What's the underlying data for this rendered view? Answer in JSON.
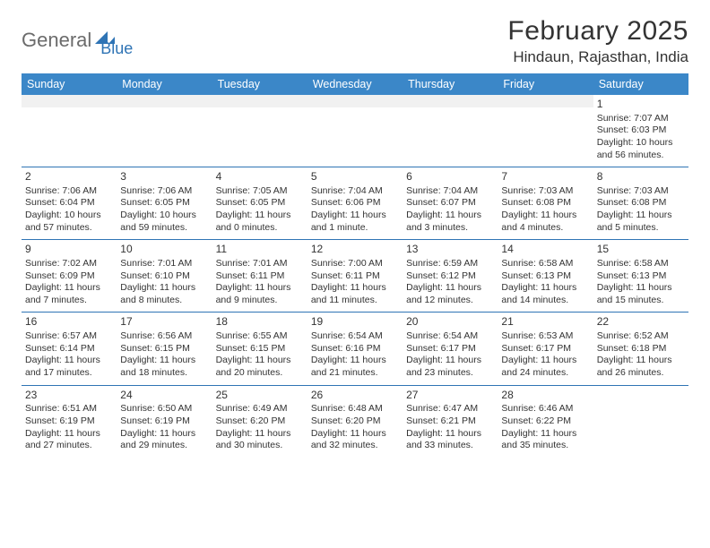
{
  "logo": {
    "text1": "General",
    "text2": "Blue"
  },
  "header": {
    "title": "February 2025",
    "location": "Hindaun, Rajasthan, India"
  },
  "colors": {
    "header_bg": "#3b87c8",
    "header_text": "#ffffff",
    "rule": "#2f74b5",
    "blank_bg": "#f1f1f1",
    "logo_gray": "#6b6b6b",
    "logo_blue": "#2f74b5",
    "body_text": "#333333"
  },
  "day_headers": [
    "Sunday",
    "Monday",
    "Tuesday",
    "Wednesday",
    "Thursday",
    "Friday",
    "Saturday"
  ],
  "weeks": [
    [
      null,
      null,
      null,
      null,
      null,
      null,
      {
        "day": "1",
        "sunrise": "Sunrise: 7:07 AM",
        "sunset": "Sunset: 6:03 PM",
        "daylight": "Daylight: 10 hours and 56 minutes."
      }
    ],
    [
      {
        "day": "2",
        "sunrise": "Sunrise: 7:06 AM",
        "sunset": "Sunset: 6:04 PM",
        "daylight": "Daylight: 10 hours and 57 minutes."
      },
      {
        "day": "3",
        "sunrise": "Sunrise: 7:06 AM",
        "sunset": "Sunset: 6:05 PM",
        "daylight": "Daylight: 10 hours and 59 minutes."
      },
      {
        "day": "4",
        "sunrise": "Sunrise: 7:05 AM",
        "sunset": "Sunset: 6:05 PM",
        "daylight": "Daylight: 11 hours and 0 minutes."
      },
      {
        "day": "5",
        "sunrise": "Sunrise: 7:04 AM",
        "sunset": "Sunset: 6:06 PM",
        "daylight": "Daylight: 11 hours and 1 minute."
      },
      {
        "day": "6",
        "sunrise": "Sunrise: 7:04 AM",
        "sunset": "Sunset: 6:07 PM",
        "daylight": "Daylight: 11 hours and 3 minutes."
      },
      {
        "day": "7",
        "sunrise": "Sunrise: 7:03 AM",
        "sunset": "Sunset: 6:08 PM",
        "daylight": "Daylight: 11 hours and 4 minutes."
      },
      {
        "day": "8",
        "sunrise": "Sunrise: 7:03 AM",
        "sunset": "Sunset: 6:08 PM",
        "daylight": "Daylight: 11 hours and 5 minutes."
      }
    ],
    [
      {
        "day": "9",
        "sunrise": "Sunrise: 7:02 AM",
        "sunset": "Sunset: 6:09 PM",
        "daylight": "Daylight: 11 hours and 7 minutes."
      },
      {
        "day": "10",
        "sunrise": "Sunrise: 7:01 AM",
        "sunset": "Sunset: 6:10 PM",
        "daylight": "Daylight: 11 hours and 8 minutes."
      },
      {
        "day": "11",
        "sunrise": "Sunrise: 7:01 AM",
        "sunset": "Sunset: 6:11 PM",
        "daylight": "Daylight: 11 hours and 9 minutes."
      },
      {
        "day": "12",
        "sunrise": "Sunrise: 7:00 AM",
        "sunset": "Sunset: 6:11 PM",
        "daylight": "Daylight: 11 hours and 11 minutes."
      },
      {
        "day": "13",
        "sunrise": "Sunrise: 6:59 AM",
        "sunset": "Sunset: 6:12 PM",
        "daylight": "Daylight: 11 hours and 12 minutes."
      },
      {
        "day": "14",
        "sunrise": "Sunrise: 6:58 AM",
        "sunset": "Sunset: 6:13 PM",
        "daylight": "Daylight: 11 hours and 14 minutes."
      },
      {
        "day": "15",
        "sunrise": "Sunrise: 6:58 AM",
        "sunset": "Sunset: 6:13 PM",
        "daylight": "Daylight: 11 hours and 15 minutes."
      }
    ],
    [
      {
        "day": "16",
        "sunrise": "Sunrise: 6:57 AM",
        "sunset": "Sunset: 6:14 PM",
        "daylight": "Daylight: 11 hours and 17 minutes."
      },
      {
        "day": "17",
        "sunrise": "Sunrise: 6:56 AM",
        "sunset": "Sunset: 6:15 PM",
        "daylight": "Daylight: 11 hours and 18 minutes."
      },
      {
        "day": "18",
        "sunrise": "Sunrise: 6:55 AM",
        "sunset": "Sunset: 6:15 PM",
        "daylight": "Daylight: 11 hours and 20 minutes."
      },
      {
        "day": "19",
        "sunrise": "Sunrise: 6:54 AM",
        "sunset": "Sunset: 6:16 PM",
        "daylight": "Daylight: 11 hours and 21 minutes."
      },
      {
        "day": "20",
        "sunrise": "Sunrise: 6:54 AM",
        "sunset": "Sunset: 6:17 PM",
        "daylight": "Daylight: 11 hours and 23 minutes."
      },
      {
        "day": "21",
        "sunrise": "Sunrise: 6:53 AM",
        "sunset": "Sunset: 6:17 PM",
        "daylight": "Daylight: 11 hours and 24 minutes."
      },
      {
        "day": "22",
        "sunrise": "Sunrise: 6:52 AM",
        "sunset": "Sunset: 6:18 PM",
        "daylight": "Daylight: 11 hours and 26 minutes."
      }
    ],
    [
      {
        "day": "23",
        "sunrise": "Sunrise: 6:51 AM",
        "sunset": "Sunset: 6:19 PM",
        "daylight": "Daylight: 11 hours and 27 minutes."
      },
      {
        "day": "24",
        "sunrise": "Sunrise: 6:50 AM",
        "sunset": "Sunset: 6:19 PM",
        "daylight": "Daylight: 11 hours and 29 minutes."
      },
      {
        "day": "25",
        "sunrise": "Sunrise: 6:49 AM",
        "sunset": "Sunset: 6:20 PM",
        "daylight": "Daylight: 11 hours and 30 minutes."
      },
      {
        "day": "26",
        "sunrise": "Sunrise: 6:48 AM",
        "sunset": "Sunset: 6:20 PM",
        "daylight": "Daylight: 11 hours and 32 minutes."
      },
      {
        "day": "27",
        "sunrise": "Sunrise: 6:47 AM",
        "sunset": "Sunset: 6:21 PM",
        "daylight": "Daylight: 11 hours and 33 minutes."
      },
      {
        "day": "28",
        "sunrise": "Sunrise: 6:46 AM",
        "sunset": "Sunset: 6:22 PM",
        "daylight": "Daylight: 11 hours and 35 minutes."
      },
      null
    ]
  ]
}
